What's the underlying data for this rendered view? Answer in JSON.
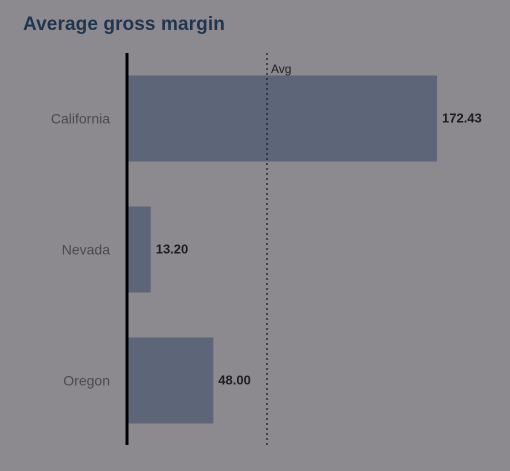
{
  "colors": {
    "background": "#8c8a8f",
    "bar": "#5c6678",
    "axis": "#000000",
    "title": "#1f3550"
  },
  "chart_data": {
    "type": "bar",
    "orientation": "horizontal",
    "title": "Average gross margin",
    "categories": [
      "California",
      "Nevada",
      "Oregon"
    ],
    "values": [
      172.43,
      13.2,
      48.0
    ],
    "value_labels": [
      "172.43",
      "13.20",
      "48.00"
    ],
    "reference_line": {
      "label": "Avg",
      "value": 77.88,
      "style": "dotted"
    },
    "xlim": [
      0,
      172.43
    ],
    "grid": false,
    "legend": "none"
  }
}
